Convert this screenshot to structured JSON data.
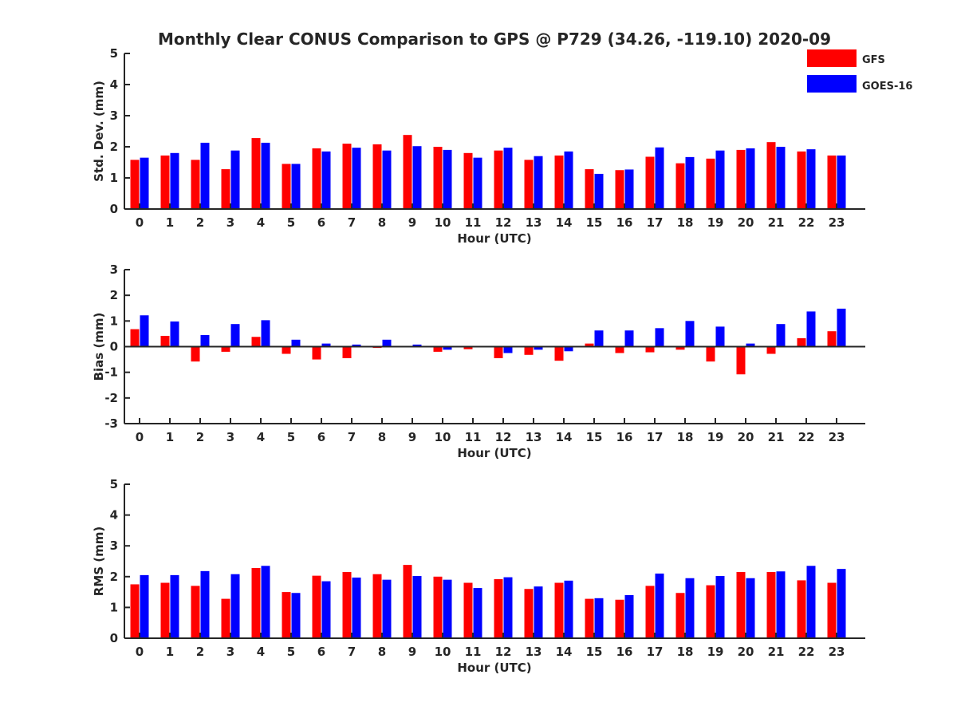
{
  "title": "Monthly Clear CONUS Comparison to GPS @ P729 (34.26, -119.10) 2020-09",
  "legend": [
    {
      "label": "GFS",
      "color": "#ff0000"
    },
    {
      "label": "GOES-16",
      "color": "#0000ff"
    }
  ],
  "chart_data": [
    {
      "type": "bar",
      "xlabel": "Hour (UTC)",
      "ylabel": "Std. Dev. (mm)",
      "ylim": [
        0,
        5
      ],
      "yticks": [
        0,
        1,
        2,
        3,
        4,
        5
      ],
      "categories": [
        "0",
        "1",
        "2",
        "3",
        "4",
        "5",
        "6",
        "7",
        "8",
        "9",
        "10",
        "11",
        "12",
        "13",
        "14",
        "15",
        "16",
        "17",
        "18",
        "19",
        "20",
        "21",
        "22",
        "23"
      ],
      "series": [
        {
          "name": "GFS",
          "color": "#ff0000",
          "values": [
            1.58,
            1.72,
            1.58,
            1.28,
            2.28,
            1.45,
            1.95,
            2.1,
            2.08,
            2.38,
            2.0,
            1.8,
            1.88,
            1.58,
            1.72,
            1.28,
            1.25,
            1.68,
            1.47,
            1.62,
            1.9,
            2.15,
            1.85,
            1.72
          ]
        },
        {
          "name": "GOES-16",
          "color": "#0000ff",
          "values": [
            1.65,
            1.8,
            2.13,
            1.88,
            2.13,
            1.45,
            1.85,
            1.97,
            1.88,
            2.02,
            1.9,
            1.65,
            1.97,
            1.7,
            1.85,
            1.13,
            1.27,
            1.98,
            1.67,
            1.88,
            1.95,
            2.0,
            1.92,
            1.72
          ]
        }
      ]
    },
    {
      "type": "bar",
      "xlabel": "Hour (UTC)",
      "ylabel": "Bias (mm)",
      "ylim": [
        -3,
        3
      ],
      "yticks": [
        -3,
        -2,
        -1,
        0,
        1,
        2,
        3
      ],
      "categories": [
        "0",
        "1",
        "2",
        "3",
        "4",
        "5",
        "6",
        "7",
        "8",
        "9",
        "10",
        "11",
        "12",
        "13",
        "14",
        "15",
        "16",
        "17",
        "18",
        "19",
        "20",
        "21",
        "22",
        "23"
      ],
      "series": [
        {
          "name": "GFS",
          "color": "#ff0000",
          "values": [
            0.68,
            0.42,
            -0.58,
            -0.2,
            0.38,
            -0.28,
            -0.5,
            -0.45,
            -0.05,
            0.0,
            -0.2,
            -0.1,
            -0.45,
            -0.32,
            -0.55,
            0.12,
            -0.25,
            -0.22,
            -0.12,
            -0.58,
            -1.08,
            -0.28,
            0.33,
            0.6
          ]
        },
        {
          "name": "GOES-16",
          "color": "#0000ff",
          "values": [
            1.22,
            0.98,
            0.45,
            0.88,
            1.03,
            0.27,
            0.12,
            0.08,
            0.27,
            0.08,
            -0.12,
            0.02,
            -0.25,
            -0.12,
            -0.18,
            0.63,
            0.63,
            0.72,
            1.0,
            0.78,
            0.12,
            0.88,
            1.37,
            1.48
          ]
        }
      ]
    },
    {
      "type": "bar",
      "xlabel": "Hour (UTC)",
      "ylabel": "RMS (mm)",
      "ylim": [
        0,
        5
      ],
      "yticks": [
        0,
        1,
        2,
        3,
        4,
        5
      ],
      "categories": [
        "0",
        "1",
        "2",
        "3",
        "4",
        "5",
        "6",
        "7",
        "8",
        "9",
        "10",
        "11",
        "12",
        "13",
        "14",
        "15",
        "16",
        "17",
        "18",
        "19",
        "20",
        "21",
        "22",
        "23"
      ],
      "series": [
        {
          "name": "GFS",
          "color": "#ff0000",
          "values": [
            1.75,
            1.8,
            1.7,
            1.28,
            2.28,
            1.5,
            2.03,
            2.15,
            2.08,
            2.38,
            2.0,
            1.8,
            1.92,
            1.6,
            1.8,
            1.28,
            1.25,
            1.7,
            1.47,
            1.72,
            2.15,
            2.15,
            1.88,
            1.8
          ]
        },
        {
          "name": "GOES-16",
          "color": "#0000ff",
          "values": [
            2.05,
            2.05,
            2.18,
            2.08,
            2.35,
            1.47,
            1.85,
            1.97,
            1.9,
            2.02,
            1.9,
            1.63,
            1.98,
            1.68,
            1.87,
            1.3,
            1.4,
            2.1,
            1.95,
            2.02,
            1.95,
            2.17,
            2.35,
            2.25
          ]
        }
      ]
    }
  ]
}
